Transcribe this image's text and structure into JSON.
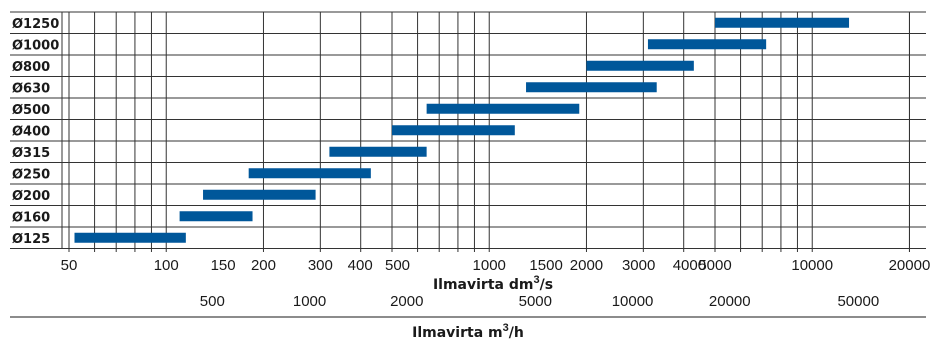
{
  "chart_data": {
    "type": "bar",
    "orientation": "horizontal-range",
    "color": "#00579a",
    "x_scale": "log",
    "xlim": [
      50,
      20000
    ],
    "categories": [
      "Ø1250",
      "Ø1000",
      "Ø800",
      "Ø630",
      "Ø500",
      "Ø400",
      "Ø315",
      "Ø250",
      "Ø200",
      "Ø160",
      "Ø125"
    ],
    "ranges": [
      [
        5000,
        13000
      ],
      [
        3100,
        7200
      ],
      [
        2000,
        4300
      ],
      [
        1300,
        3300
      ],
      [
        640,
        1900
      ],
      [
        500,
        1200
      ],
      [
        320,
        640
      ],
      [
        180,
        430
      ],
      [
        130,
        290
      ],
      [
        110,
        185
      ],
      [
        52,
        115
      ]
    ],
    "x_ticks": [
      "50",
      "100",
      "150",
      "200",
      "300",
      "400",
      "500",
      "1000",
      "1500",
      "2000",
      "3000",
      "4000",
      "5000",
      "10000",
      "20000"
    ],
    "xlabel": "Ilmavirta dm",
    "xlabel_sup": "3",
    "xlabel_tail": "/s",
    "x2_ticks": [
      "500",
      "1000",
      "2000",
      "5000",
      "10000",
      "20000",
      "50000"
    ],
    "x2label": "Ilmavirta m",
    "x2label_sup": "3",
    "x2label_tail": "/h"
  }
}
